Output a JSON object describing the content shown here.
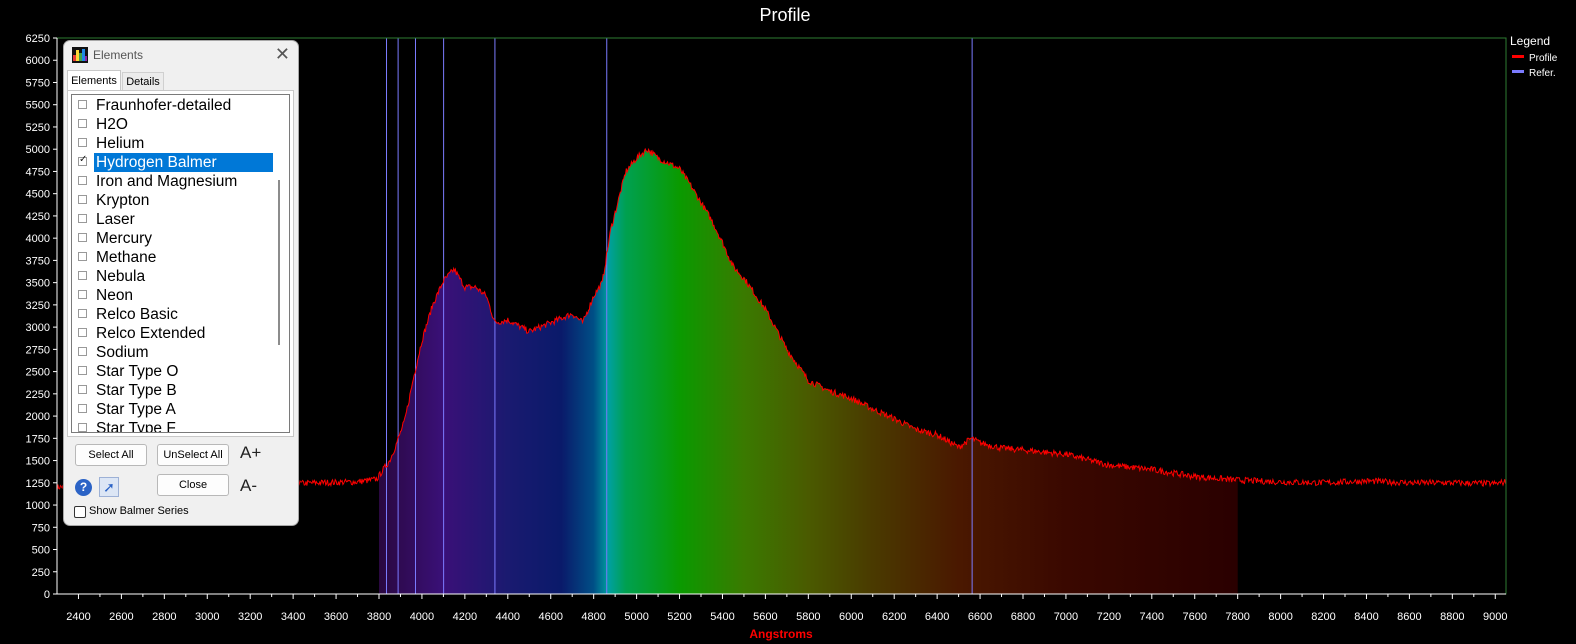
{
  "chart_data": {
    "type": "area",
    "title": "Profile",
    "xlabel": "Angstroms",
    "ylabel": "",
    "xlim": [
      2300,
      9050
    ],
    "ylim": [
      0,
      6250
    ],
    "x_ticks": [
      "2400",
      "2600",
      "2800",
      "3000",
      "3200",
      "3400",
      "3600",
      "3800",
      "4000",
      "4200",
      "4400",
      "4600",
      "4800",
      "5000",
      "5200",
      "5400",
      "5600",
      "5800",
      "6000",
      "6200",
      "6400",
      "6600",
      "6800",
      "7000",
      "7200",
      "7400",
      "7600",
      "7800",
      "8000",
      "8200",
      "8400",
      "8600",
      "8800",
      "9000"
    ],
    "y_ticks": [
      "0",
      "250",
      "500",
      "750",
      "1000",
      "1250",
      "1500",
      "1750",
      "2000",
      "2250",
      "2500",
      "2750",
      "3000",
      "3250",
      "3500",
      "3750",
      "4000",
      "4250",
      "4500",
      "4750",
      "5000",
      "5250",
      "5500",
      "5750",
      "6000",
      "6250"
    ],
    "legend_title": "Legend",
    "legend_position": "top-right",
    "series": [
      {
        "name": "Profile",
        "color": "#ff0000",
        "x": [
          2300,
          2600,
          3000,
          3200,
          3300,
          3500,
          3700,
          3790,
          3820,
          3850,
          3880,
          3920,
          3960,
          4000,
          4050,
          4100,
          4150,
          4200,
          4250,
          4300,
          4340,
          4400,
          4500,
          4600,
          4700,
          4750,
          4800,
          4840,
          4880,
          4950,
          5000,
          5050,
          5100,
          5200,
          5250,
          5350,
          5400,
          5450,
          5500,
          5600,
          5700,
          5800,
          5900,
          6000,
          6100,
          6200,
          6300,
          6400,
          6500,
          6560,
          6600,
          6700,
          6800,
          7000,
          7200,
          7400,
          7600,
          7800,
          8000,
          8200,
          8400,
          8600,
          8800,
          9000,
          9050
        ],
        "values": [
          1200,
          1250,
          1200,
          1240,
          1230,
          1250,
          1260,
          1290,
          1400,
          1500,
          1680,
          1950,
          2420,
          2850,
          3250,
          3520,
          3650,
          3450,
          3450,
          3350,
          3050,
          3080,
          2950,
          3050,
          3150,
          3050,
          3350,
          3500,
          4100,
          4750,
          4900,
          5000,
          4900,
          4780,
          4600,
          4200,
          3950,
          3680,
          3550,
          3200,
          2750,
          2400,
          2280,
          2200,
          2080,
          1970,
          1850,
          1790,
          1650,
          1750,
          1700,
          1640,
          1620,
          1570,
          1450,
          1400,
          1320,
          1280,
          1260,
          1250,
          1270,
          1250,
          1250,
          1240,
          1260
        ]
      },
      {
        "name": "Refer.",
        "color": "#7b7bff",
        "type": "vertical-lines",
        "x": [
          3835,
          3889,
          3970,
          4101,
          4340,
          4861,
          6563
        ]
      }
    ],
    "spectrum_fill_range": [
      3800,
      7800
    ]
  },
  "dialog": {
    "title": "Elements",
    "close_label": "✕",
    "tabs": [
      "Elements",
      "Details"
    ],
    "items": [
      {
        "label": "Fraunhofer-detailed",
        "checked": false
      },
      {
        "label": "H2O",
        "checked": false
      },
      {
        "label": "Helium",
        "checked": false
      },
      {
        "label": "Hydrogen Balmer",
        "checked": true
      },
      {
        "label": "Iron and Magnesium",
        "checked": false
      },
      {
        "label": "Krypton",
        "checked": false
      },
      {
        "label": "Laser",
        "checked": false
      },
      {
        "label": "Mercury",
        "checked": false
      },
      {
        "label": "Methane",
        "checked": false
      },
      {
        "label": "Nebula",
        "checked": false
      },
      {
        "label": "Neon",
        "checked": false
      },
      {
        "label": "Relco Basic",
        "checked": false
      },
      {
        "label": "Relco Extended",
        "checked": false
      },
      {
        "label": "Sodium",
        "checked": false
      },
      {
        "label": "Star Type O",
        "checked": false
      },
      {
        "label": "Star Type B",
        "checked": false
      },
      {
        "label": "Star Type A",
        "checked": false
      },
      {
        "label": "Star Type F",
        "checked": false
      }
    ],
    "selected_index": 3,
    "select_all_label": "Select All",
    "unselect_all_label": "UnSelect All",
    "close_button_label": "Close",
    "font_increase_label": "A+",
    "font_decrease_label": "A-",
    "help_label": "?",
    "show_balmer_label": "Show Balmer Series",
    "show_balmer_checked": false
  }
}
